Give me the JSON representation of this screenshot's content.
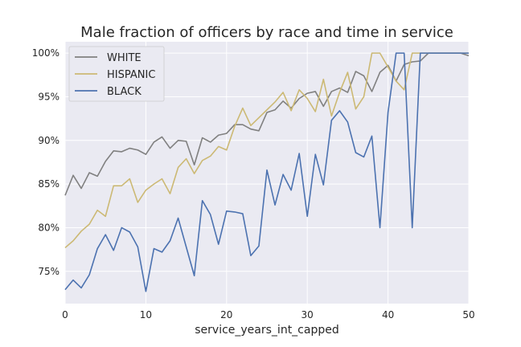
{
  "chart_data": {
    "type": "line",
    "title": "Male fraction of officers by race and time in service",
    "xlabel": "service_years_int_capped",
    "ylabel": "",
    "xlim": [
      0,
      50
    ],
    "ylim": [
      0.713,
      1.013
    ],
    "x_ticks": [
      0,
      10,
      20,
      30,
      40,
      50
    ],
    "y_ticks": [
      0.75,
      0.8,
      0.85,
      0.9,
      0.95,
      1.0
    ],
    "x_tick_labels": [
      "0",
      "10",
      "20",
      "30",
      "40",
      "50"
    ],
    "y_tick_labels": [
      "75%",
      "80%",
      "85%",
      "90%",
      "95%",
      "100%"
    ],
    "grid": true,
    "legend_position": "top-left",
    "background_color": "#eaeaf2",
    "series": [
      {
        "name": "WHITE",
        "color": "#808080",
        "x": [
          0,
          1,
          2,
          3,
          4,
          5,
          6,
          7,
          8,
          9,
          10,
          11,
          12,
          13,
          14,
          15,
          16,
          17,
          18,
          19,
          20,
          21,
          22,
          23,
          24,
          25,
          26,
          27,
          28,
          29,
          30,
          31,
          32,
          33,
          34,
          35,
          36,
          37,
          38,
          39,
          40,
          41,
          42,
          43,
          44,
          45,
          46,
          47,
          48,
          49,
          50
        ],
        "values": [
          0.837,
          0.86,
          0.845,
          0.863,
          0.859,
          0.876,
          0.888,
          0.887,
          0.891,
          0.889,
          0.884,
          0.898,
          0.904,
          0.891,
          0.9,
          0.899,
          0.872,
          0.903,
          0.898,
          0.906,
          0.908,
          0.918,
          0.918,
          0.913,
          0.911,
          0.932,
          0.935,
          0.945,
          0.937,
          0.948,
          0.954,
          0.956,
          0.939,
          0.956,
          0.96,
          0.955,
          0.979,
          0.974,
          0.956,
          0.978,
          0.986,
          0.968,
          0.987,
          0.99,
          0.991,
          1.0,
          1.0,
          1.0,
          1.0,
          1.0,
          0.997
        ]
      },
      {
        "name": "HISPANIC",
        "color": "#ccb974",
        "x": [
          0,
          1,
          2,
          3,
          4,
          5,
          6,
          7,
          8,
          9,
          10,
          11,
          12,
          13,
          14,
          15,
          16,
          17,
          18,
          19,
          20,
          21,
          22,
          23,
          24,
          25,
          26,
          27,
          28,
          29,
          30,
          31,
          32,
          33,
          34,
          35,
          36,
          37,
          38,
          39,
          40,
          41,
          42,
          43,
          44,
          45,
          46,
          47,
          48,
          49,
          50
        ],
        "values": [
          0.777,
          0.785,
          0.796,
          0.804,
          0.82,
          0.813,
          0.848,
          0.848,
          0.856,
          0.829,
          0.843,
          0.85,
          0.856,
          0.839,
          0.869,
          0.879,
          0.862,
          0.877,
          0.882,
          0.893,
          0.889,
          0.916,
          0.937,
          0.917,
          0.926,
          0.935,
          0.944,
          0.955,
          0.934,
          0.958,
          0.948,
          0.933,
          0.97,
          0.928,
          0.955,
          0.978,
          0.936,
          0.95,
          1.0,
          1.0,
          0.984,
          0.968,
          0.958,
          1.0,
          1.0,
          1.0,
          1.0,
          1.0,
          1.0,
          1.0,
          1.0
        ]
      },
      {
        "name": "BLACK",
        "color": "#4c72b0",
        "x": [
          0,
          1,
          2,
          3,
          4,
          5,
          6,
          7,
          8,
          9,
          10,
          11,
          12,
          13,
          14,
          15,
          16,
          17,
          18,
          19,
          20,
          21,
          22,
          23,
          24,
          25,
          26,
          27,
          28,
          29,
          30,
          31,
          32,
          33,
          34,
          35,
          36,
          37,
          38,
          39,
          40,
          41,
          42,
          43,
          44,
          45,
          46,
          47,
          48,
          49,
          50
        ],
        "values": [
          0.729,
          0.74,
          0.731,
          0.746,
          0.776,
          0.792,
          0.774,
          0.8,
          0.795,
          0.778,
          0.727,
          0.776,
          0.772,
          0.785,
          0.811,
          0.778,
          0.745,
          0.831,
          0.815,
          0.781,
          0.819,
          0.818,
          0.816,
          0.768,
          0.779,
          0.866,
          0.826,
          0.861,
          0.843,
          0.885,
          0.813,
          0.884,
          0.849,
          0.923,
          0.934,
          0.921,
          0.886,
          0.881,
          0.905,
          0.8,
          0.932,
          1.0,
          1.0,
          0.8,
          1.0,
          1.0,
          1.0,
          1.0,
          1.0,
          1.0,
          1.0
        ]
      }
    ]
  }
}
